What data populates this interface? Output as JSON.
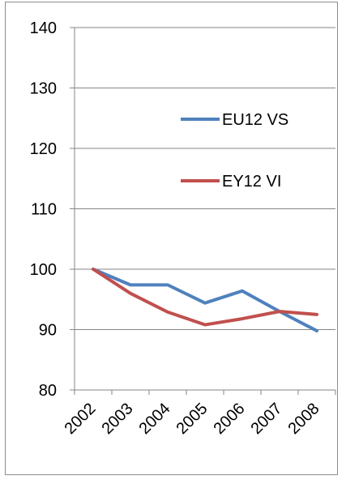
{
  "chart_data": {
    "type": "line",
    "categories": [
      "2002",
      "2003",
      "2004",
      "2005",
      "2006",
      "2007",
      "2008"
    ],
    "series": [
      {
        "name": "EU12 VS",
        "color": "#4f81bd",
        "values": [
          100,
          97.4,
          97.4,
          94.4,
          96.4,
          93.0,
          89.8
        ]
      },
      {
        "name": "EY12 VI",
        "color": "#c0504d",
        "values": [
          100,
          96.0,
          92.9,
          90.8,
          91.8,
          93.0,
          92.5
        ]
      }
    ],
    "ylim": [
      80,
      140
    ],
    "yticks": [
      80,
      90,
      100,
      110,
      120,
      130,
      140
    ],
    "grid": true,
    "legend": "inside-top-right",
    "title": "",
    "xlabel": "",
    "ylabel": ""
  }
}
